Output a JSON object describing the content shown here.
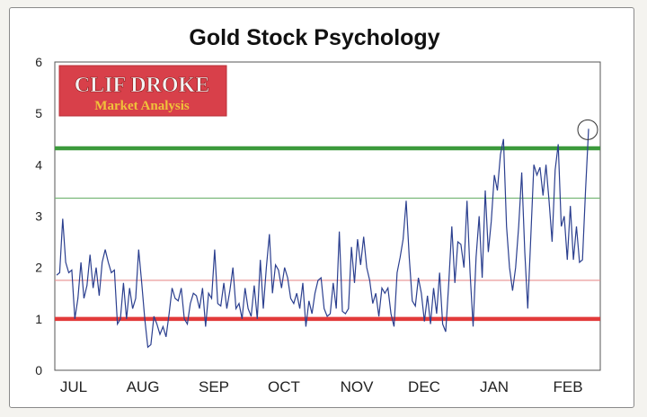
{
  "chart_data": {
    "type": "line",
    "title": "Gold Stock Psychology",
    "xlabel": "",
    "ylabel": "",
    "ylim": [
      0,
      6
    ],
    "yticks": [
      0,
      1,
      2,
      3,
      4,
      5,
      6
    ],
    "months": [
      "JUL",
      "AUG",
      "SEP",
      "OCT",
      "NOV",
      "DEC",
      "JAN",
      "FEB"
    ],
    "grid": false,
    "legend": "none",
    "series": [
      {
        "name": "",
        "color": "#2b3f8f",
        "values": [
          1.85,
          1.9,
          2.95,
          2.1,
          1.9,
          1.95,
          1.0,
          1.4,
          2.1,
          1.4,
          1.65,
          2.25,
          1.6,
          2.0,
          1.45,
          2.1,
          2.35,
          2.1,
          1.9,
          1.95,
          0.9,
          1.0,
          1.7,
          1.0,
          1.6,
          1.2,
          1.4,
          2.35,
          1.7,
          1.0,
          0.45,
          0.5,
          1.05,
          0.9,
          0.7,
          0.85,
          0.65,
          1.1,
          1.6,
          1.4,
          1.35,
          1.6,
          1.0,
          0.9,
          1.3,
          1.5,
          1.45,
          1.2,
          1.6,
          0.85,
          1.5,
          1.4,
          2.35,
          1.3,
          1.25,
          1.7,
          1.2,
          1.55,
          2.0,
          1.2,
          1.3,
          1.0,
          1.6,
          1.2,
          1.05,
          1.65,
          1.0,
          2.15,
          1.2,
          2.0,
          2.65,
          1.5,
          2.05,
          1.95,
          1.6,
          2.0,
          1.8,
          1.4,
          1.3,
          1.5,
          1.2,
          1.7,
          0.85,
          1.35,
          1.1,
          1.5,
          1.75,
          1.8,
          1.2,
          1.05,
          1.1,
          1.7,
          1.2,
          2.7,
          1.15,
          1.1,
          1.2,
          2.4,
          1.7,
          2.55,
          2.05,
          2.6,
          2.0,
          1.75,
          1.3,
          1.5,
          1.05,
          1.6,
          1.5,
          1.6,
          1.1,
          0.85,
          1.9,
          2.2,
          2.55,
          3.3,
          2.2,
          1.35,
          1.25,
          1.8,
          1.5,
          0.95,
          1.45,
          0.9,
          1.6,
          1.1,
          1.9,
          0.9,
          0.75,
          1.7,
          2.8,
          1.7,
          2.5,
          2.45,
          2.0,
          3.3,
          1.9,
          0.85,
          2.2,
          3.0,
          1.8,
          3.5,
          2.3,
          2.9,
          3.8,
          3.5,
          4.2,
          4.5,
          2.8,
          2.0,
          1.55,
          2.0,
          2.8,
          3.85,
          2.3,
          1.2,
          2.6,
          4.0,
          3.8,
          3.95,
          3.4,
          4.0,
          3.3,
          2.5,
          3.9,
          4.4,
          2.8,
          3.0,
          2.15,
          3.2,
          2.15,
          2.8,
          2.1,
          2.15,
          3.5,
          4.7
        ]
      }
    ],
    "reference_lines": [
      {
        "value": 4.32,
        "color": "#3c9a3c",
        "weight": "thick"
      },
      {
        "value": 3.35,
        "color": "#78b878",
        "weight": "thin"
      },
      {
        "value": 1.75,
        "color": "#e88f8f",
        "weight": "thin"
      },
      {
        "value": 1.0,
        "color": "#e23a3a",
        "weight": "thick"
      }
    ],
    "annotation": "circle around final peak"
  },
  "logo": {
    "line1": "CLIF DROKE",
    "line2": "Market Analysis",
    "bg_color": "#d8404a"
  }
}
